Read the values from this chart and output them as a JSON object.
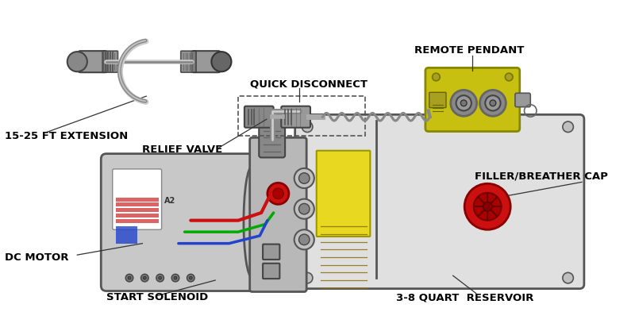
{
  "bg_color": "#ffffff",
  "labels": {
    "extension": "15-25 FT EXTENSION",
    "relief_valve": "RELIEF VALVE",
    "dc_motor": "DC MOTOR",
    "start_solenoid": "START SOLENOID",
    "quick_disconnect": "QUICK DISCONNECT",
    "remote_pendant": "REMOTE PENDANT",
    "filler_cap": "FILLER/BREATHER CAP",
    "reservoir": "3-8 QUART  RESERVOIR"
  },
  "colors": {
    "body_light": "#d8d8d8",
    "body_mid": "#c0c0c0",
    "body_dark": "#a0a0a0",
    "body_stroke": "#555555",
    "motor_fill": "#c8c8c8",
    "reservoir_fill": "#e0e0e0",
    "pump_block_fill": "#b8b8b8",
    "yellow_sticker": "#e8d820",
    "yellow_pendant": "#c8c010",
    "red_fill": "#cc1010",
    "red_dark": "#880000",
    "red_wire": "#cc1010",
    "green_wire": "#00aa00",
    "blue_wire": "#2244cc",
    "connector_fill": "#909090",
    "connector_dark": "#555555",
    "label_text": "#000000",
    "cable_gray": "#999999",
    "coil_gray": "#b0b0b0",
    "annot_line": "#333333",
    "solenoid_top": "#888888",
    "flag_red": "#cc2222",
    "flag_blue": "#2244cc",
    "flag_bg": "#ffffff"
  },
  "figsize": [
    8.0,
    4.22
  ],
  "dpi": 100
}
